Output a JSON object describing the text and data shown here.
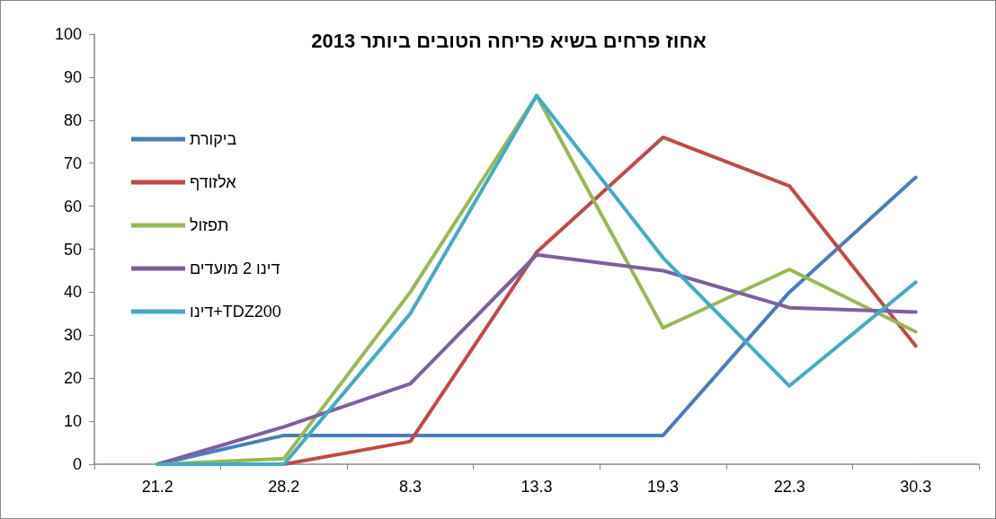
{
  "chart_data": {
    "type": "line",
    "title": "אחוז פרחים בשיא פריחה הטובים ביותר 2013",
    "categories": [
      "21.2",
      "28.2",
      "8.3",
      "13.3",
      "19.3",
      "22.3",
      "30.3"
    ],
    "series": [
      {
        "name": "ביקורת",
        "color": "#4a7ebb",
        "values": [
          0,
          6.7,
          6.7,
          6.7,
          6.7,
          40,
          66.7
        ]
      },
      {
        "name": "אלזודף",
        "color": "#be4b48",
        "values": [
          0,
          0,
          5.3,
          49.3,
          76,
          64.7,
          27.5
        ]
      },
      {
        "name": "תפזול",
        "color": "#98b954",
        "values": [
          0,
          1.3,
          40,
          85.7,
          31.7,
          45.3,
          30.8
        ]
      },
      {
        "name": "דינו 2 מועדים",
        "color": "#7d60a0",
        "values": [
          0,
          8.7,
          18.7,
          48.7,
          45,
          36.4,
          35.4
        ]
      },
      {
        "name": "דינו+TDZ200",
        "color": "#46aac5",
        "values": [
          0,
          0,
          35,
          85.7,
          48,
          18.2,
          42.3
        ]
      }
    ],
    "ylim": [
      0,
      100
    ],
    "yticks": [
      0,
      10,
      20,
      30,
      40,
      50,
      60,
      70,
      80,
      90,
      100
    ],
    "grid": false,
    "legend": "left",
    "marker": "none",
    "line_style": "solid"
  }
}
